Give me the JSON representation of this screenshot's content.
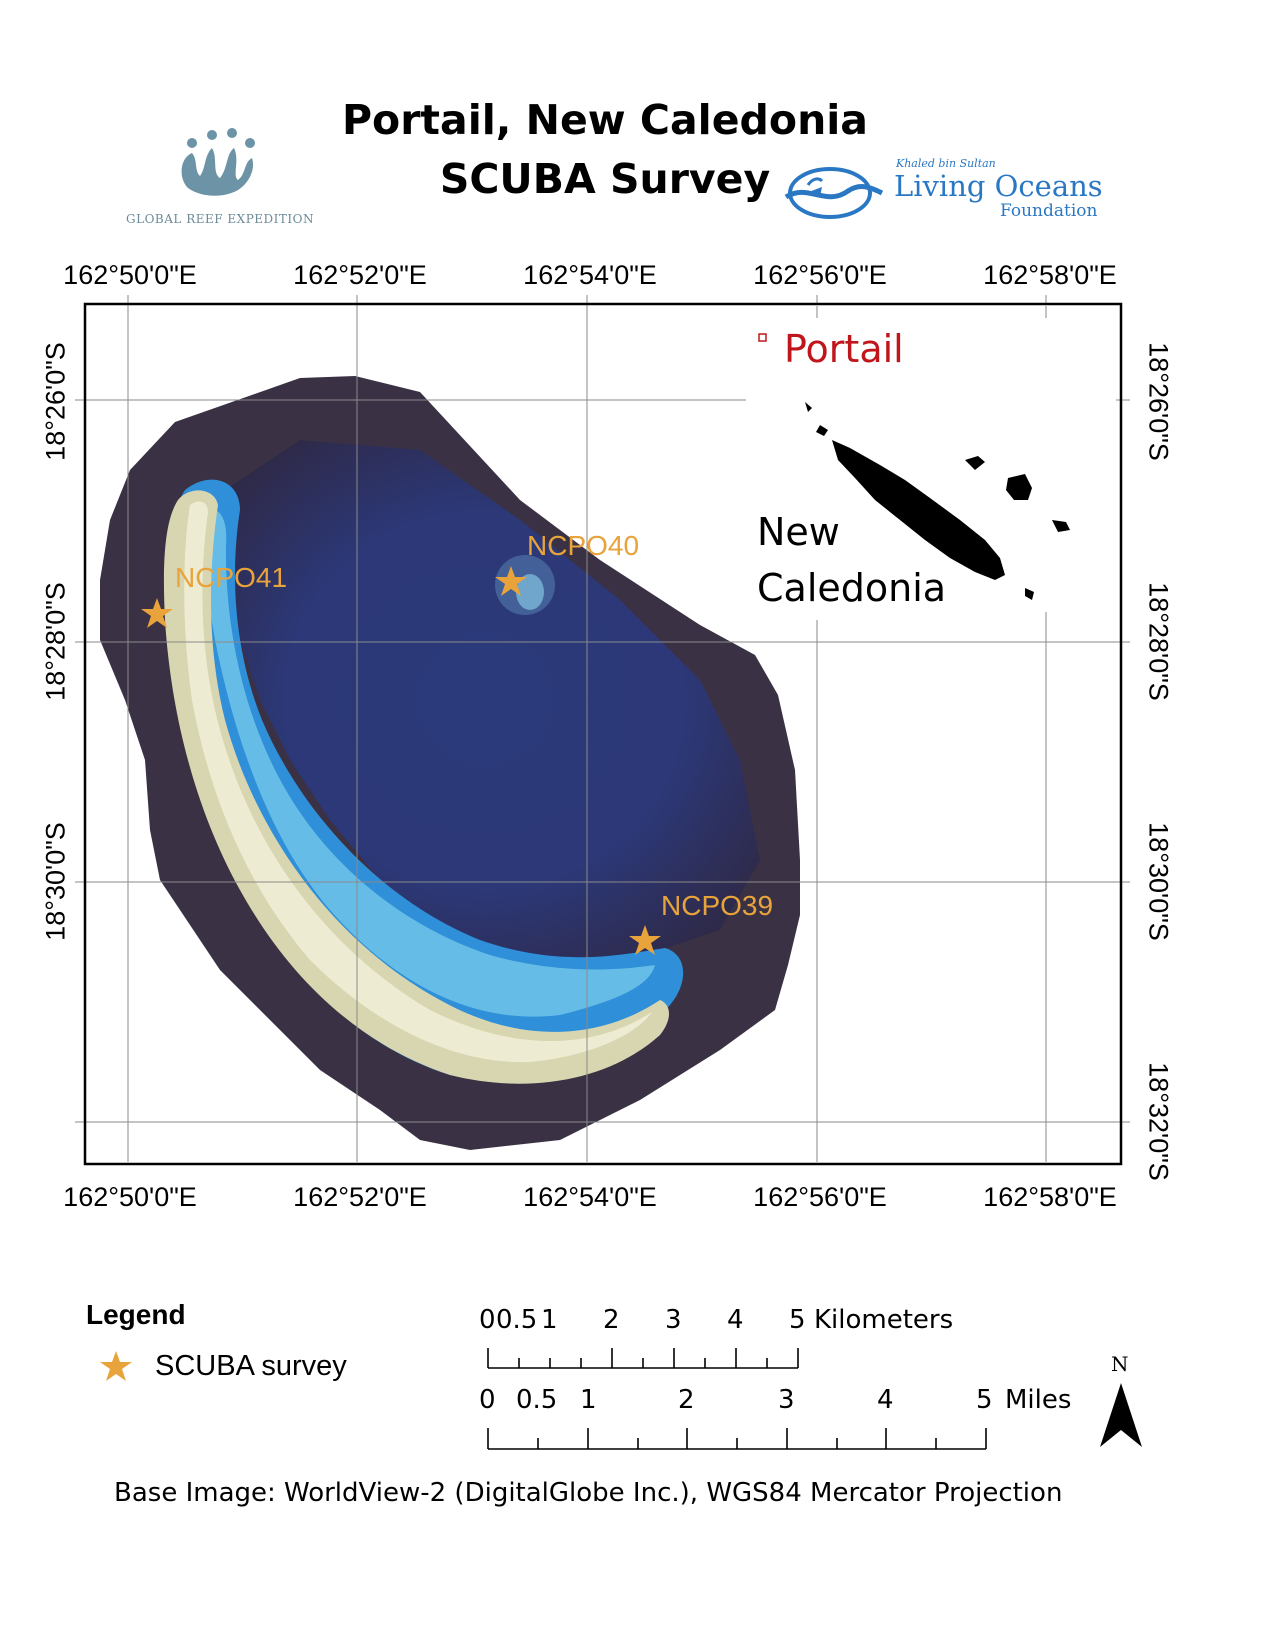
{
  "header": {
    "title_line1": "Portail, New Caledonia",
    "title_line2": "SCUBA Survey"
  },
  "logos": {
    "left_text": "GLOBAL REEF EXPEDITION",
    "right_small": "Khaled bin Sultan",
    "right_main": "Living Oceans",
    "right_sub": "Foundation"
  },
  "axes": {
    "longitude_labels": [
      "162°50'0\"E",
      "162°52'0\"E",
      "162°54'0\"E",
      "162°56'0\"E",
      "162°58'0\"E"
    ],
    "latitude_labels": [
      "18°26'0\"S",
      "18°28'0\"S",
      "18°30'0\"S",
      "18°32'0\"S"
    ]
  },
  "inset": {
    "site_label": "Portail",
    "country_line1": "New",
    "country_line2": "Caledonia",
    "marker_color": "#c0161b"
  },
  "sites": [
    {
      "name": "NCPO41",
      "lon": "162°50'15\"E",
      "lat": "18°27'50\"S"
    },
    {
      "name": "NCPO40",
      "lon": "162°53'20\"E",
      "lat": "18°27'30\"S"
    },
    {
      "name": "NCPO39",
      "lon": "162°54'30\"E",
      "lat": "18°30'30\"S"
    }
  ],
  "legend": {
    "title": "Legend",
    "item_label": "SCUBA survey",
    "marker_color": "#e8a33a"
  },
  "scale": {
    "km_labels": [
      "0",
      "0.5",
      "1",
      "2",
      "3",
      "4",
      "5"
    ],
    "km_unit": "Kilometers",
    "mi_labels": [
      "0",
      "0.5",
      "1",
      "2",
      "3",
      "4",
      "5"
    ],
    "mi_unit": "Miles"
  },
  "north_arrow": {
    "label": "N"
  },
  "credit": "Base Image: WorldView-2 (DigitalGlobe Inc.), WGS84 Mercator Projection"
}
